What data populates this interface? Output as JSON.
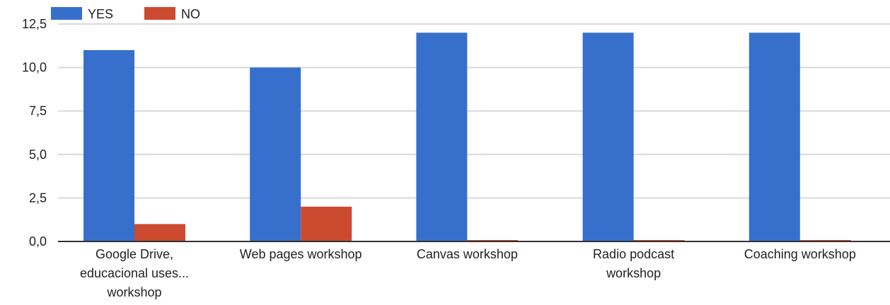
{
  "chart_data": {
    "type": "bar",
    "title": "",
    "xlabel": "",
    "ylabel": "",
    "categories": [
      [
        "Google Drive,",
        "educacional uses...",
        "workshop"
      ],
      [
        "Web pages workshop"
      ],
      [
        "Canvas workshop"
      ],
      [
        "Radio podcast",
        "workshop"
      ],
      [
        "Coaching workshop"
      ]
    ],
    "series": [
      {
        "name": "YES",
        "color": "#3670cc",
        "values": [
          11,
          10,
          12,
          12,
          12
        ]
      },
      {
        "name": "NO",
        "color": "#cc4a2f",
        "values": [
          1,
          2,
          0,
          0,
          0
        ]
      }
    ],
    "ylim": [
      0,
      12.5
    ],
    "yticks": [
      "0,0",
      "2,5",
      "5,0",
      "7,5",
      "10,0",
      "12,5"
    ],
    "ytick_values": [
      0,
      2.5,
      5,
      7.5,
      10,
      12.5
    ],
    "grid": true,
    "legend_position": "top-left",
    "colors": {
      "gridline": "#d9d9d9",
      "axis": "#333333"
    }
  }
}
